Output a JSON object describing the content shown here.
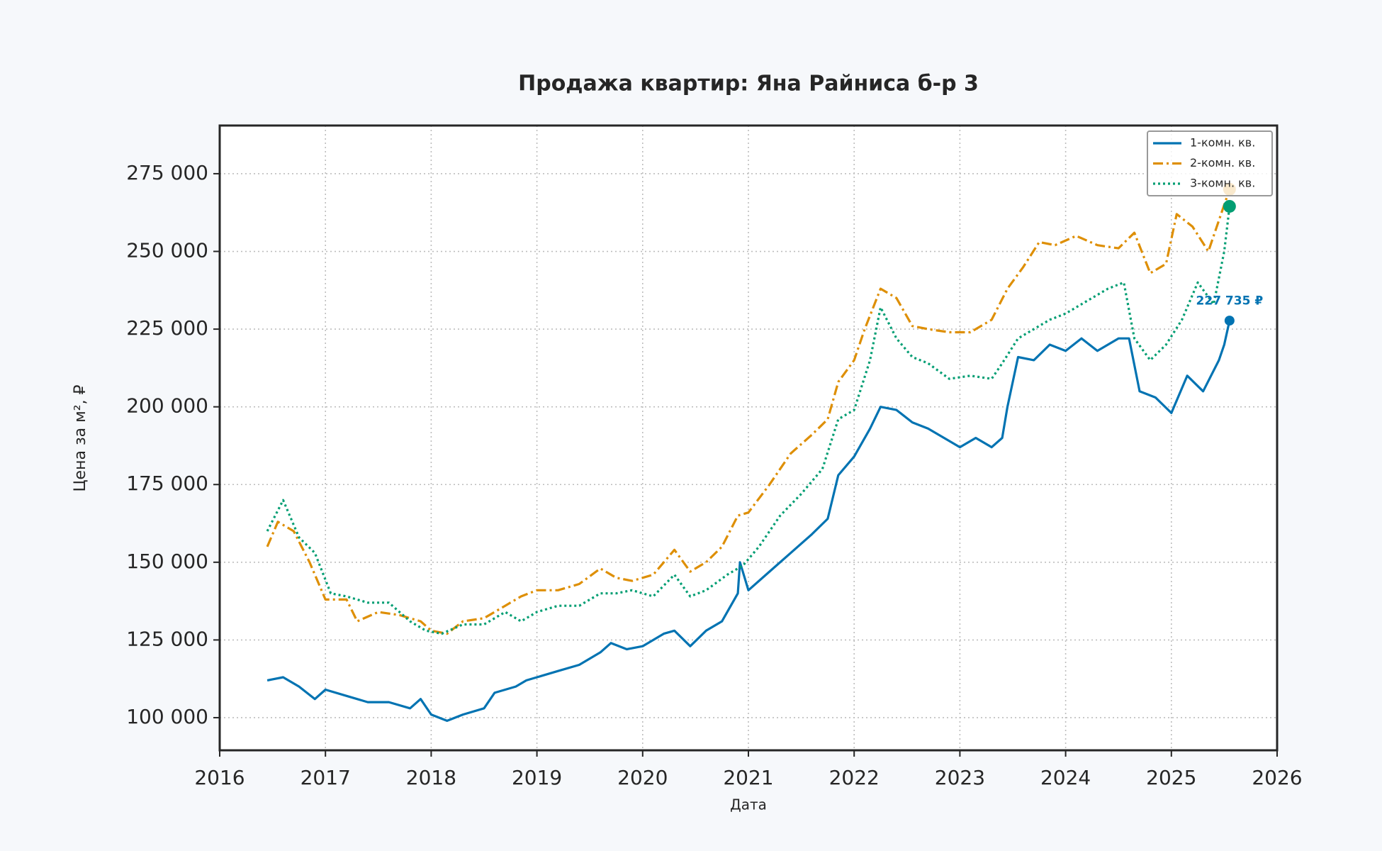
{
  "chart_data": {
    "type": "line",
    "title": "Продажа квартир: Яна Райниса б-р 3",
    "x_label": "Дата",
    "y_label": "Цена за м², ₽",
    "xlim": [
      2016,
      2026
    ],
    "xticks": [
      2016,
      2017,
      2018,
      2019,
      2020,
      2021,
      2022,
      2023,
      2024,
      2025,
      2026
    ],
    "ylim": [
      89500,
      290500
    ],
    "yticks": [
      {
        "value": 100000,
        "label": "100 000"
      },
      {
        "value": 125000,
        "label": "125 000"
      },
      {
        "value": 150000,
        "label": "150 000"
      },
      {
        "value": 175000,
        "label": "175 000"
      },
      {
        "value": 200000,
        "label": "200 000"
      },
      {
        "value": 225000,
        "label": "225 000"
      },
      {
        "value": 250000,
        "label": "250 000"
      },
      {
        "value": 275000,
        "label": "275 000"
      }
    ],
    "grid": true,
    "legend": "upper right",
    "series": [
      {
        "name": "1-комн. кв.",
        "color": "#0173b2",
        "dash": "solid",
        "x": [
          2016.45,
          2016.6,
          2016.75,
          2016.9,
          2017.0,
          2017.2,
          2017.4,
          2017.6,
          2017.8,
          2017.9,
          2018.0,
          2018.15,
          2018.3,
          2018.5,
          2018.6,
          2018.8,
          2018.9,
          2019.0,
          2019.2,
          2019.4,
          2019.6,
          2019.7,
          2019.85,
          2020.0,
          2020.2,
          2020.3,
          2020.45,
          2020.6,
          2020.75,
          2020.9,
          2020.92,
          2021.0,
          2021.2,
          2021.4,
          2021.6,
          2021.75,
          2021.85,
          2022.0,
          2022.15,
          2022.25,
          2022.4,
          2022.55,
          2022.7,
          2022.9,
          2023.0,
          2023.15,
          2023.3,
          2023.4,
          2023.45,
          2023.55,
          2023.7,
          2023.85,
          2024.0,
          2024.15,
          2024.3,
          2024.5,
          2024.6,
          2024.7,
          2024.85,
          2025.0,
          2025.15,
          2025.3,
          2025.45,
          2025.5,
          2025.55
        ],
        "values": [
          112000,
          113000,
          110000,
          106000,
          109000,
          107000,
          105000,
          105000,
          103000,
          106000,
          101000,
          99000,
          101000,
          103000,
          108000,
          110000,
          112000,
          113000,
          115000,
          117000,
          121000,
          124000,
          122000,
          123000,
          127000,
          128000,
          123000,
          128000,
          131000,
          140000,
          150000,
          141000,
          147000,
          153000,
          159000,
          164000,
          178000,
          184000,
          193000,
          200000,
          199000,
          195000,
          193000,
          189000,
          187000,
          190000,
          187000,
          190000,
          200000,
          216000,
          215000,
          220000,
          218000,
          222000,
          218000,
          222000,
          222000,
          205000,
          203000,
          198000,
          210000,
          205000,
          215000,
          220000,
          227735
        ]
      },
      {
        "name": "2-комн. кв.",
        "color": "#de8f05",
        "dash": "dashdot",
        "x": [
          2016.45,
          2016.55,
          2016.7,
          2016.85,
          2017.0,
          2017.2,
          2017.3,
          2017.5,
          2017.7,
          2017.9,
          2018.0,
          2018.15,
          2018.3,
          2018.5,
          2018.7,
          2018.85,
          2019.0,
          2019.2,
          2019.4,
          2019.6,
          2019.75,
          2019.9,
          2020.1,
          2020.3,
          2020.45,
          2020.6,
          2020.75,
          2020.9,
          2021.0,
          2021.2,
          2021.4,
          2021.6,
          2021.75,
          2021.85,
          2022.0,
          2022.1,
          2022.25,
          2022.4,
          2022.55,
          2022.7,
          2022.9,
          2023.1,
          2023.3,
          2023.45,
          2023.6,
          2023.75,
          2023.9,
          2024.1,
          2024.3,
          2024.5,
          2024.65,
          2024.8,
          2024.95,
          2025.05,
          2025.2,
          2025.35,
          2025.45,
          2025.55
        ],
        "values": [
          155000,
          163000,
          160000,
          150000,
          138000,
          138000,
          131000,
          134000,
          133000,
          131000,
          128000,
          127000,
          131000,
          132000,
          136000,
          139000,
          141000,
          141000,
          143000,
          148000,
          145000,
          144000,
          146000,
          154000,
          147000,
          150000,
          155000,
          165000,
          166000,
          175000,
          185000,
          191000,
          196000,
          208000,
          215000,
          225000,
          238000,
          235000,
          226000,
          225000,
          224000,
          224000,
          228000,
          238000,
          245000,
          253000,
          252000,
          255000,
          252000,
          251000,
          256000,
          243000,
          246000,
          262000,
          258000,
          250000,
          260000,
          270000
        ]
      },
      {
        "name": "3-комн. кв.",
        "color": "#029e73",
        "dash": "dotted",
        "x": [
          2016.45,
          2016.6,
          2016.75,
          2016.9,
          2017.05,
          2017.2,
          2017.4,
          2017.6,
          2017.8,
          2017.95,
          2018.1,
          2018.3,
          2018.5,
          2018.7,
          2018.85,
          2019.0,
          2019.2,
          2019.4,
          2019.6,
          2019.75,
          2019.9,
          2020.1,
          2020.3,
          2020.45,
          2020.6,
          2020.8,
          2020.95,
          2021.1,
          2021.3,
          2021.5,
          2021.7,
          2021.85,
          2022.0,
          2022.15,
          2022.25,
          2022.4,
          2022.55,
          2022.7,
          2022.9,
          2023.1,
          2023.3,
          2023.4,
          2023.55,
          2023.7,
          2023.85,
          2024.0,
          2024.2,
          2024.4,
          2024.55,
          2024.65,
          2024.8,
          2024.95,
          2025.1,
          2025.25,
          2025.4,
          2025.5,
          2025.55
        ],
        "values": [
          160000,
          170000,
          158000,
          153000,
          140000,
          139000,
          137000,
          137000,
          131000,
          128000,
          127000,
          130000,
          130000,
          134000,
          131000,
          134000,
          136000,
          136000,
          140000,
          140000,
          141000,
          139000,
          146000,
          139000,
          141000,
          146000,
          149000,
          155000,
          165000,
          172000,
          180000,
          196000,
          199000,
          215000,
          232000,
          222000,
          216000,
          214000,
          209000,
          210000,
          209000,
          214000,
          222000,
          225000,
          228000,
          230000,
          234000,
          238000,
          240000,
          222000,
          215000,
          220000,
          228000,
          240000,
          233000,
          250000,
          264500
        ]
      }
    ],
    "annotations": [
      {
        "text": "227 735 ₽",
        "x": 2025.55,
        "y": 234000
      }
    ]
  }
}
